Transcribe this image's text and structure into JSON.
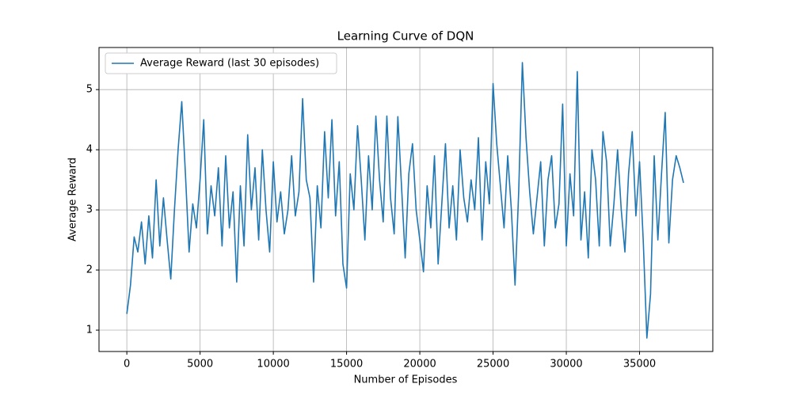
{
  "chart_data": {
    "type": "line",
    "title": "Learning Curve of DQN",
    "xlabel": "Number of Episodes",
    "ylabel": "Average Reward",
    "legend": "upper left",
    "grid": true,
    "xlim": [
      -1900,
      40000
    ],
    "ylim": [
      0.645,
      5.7
    ],
    "xticks": [
      0,
      5000,
      10000,
      15000,
      20000,
      25000,
      30000,
      35000
    ],
    "yticks": [
      1,
      2,
      3,
      4,
      5
    ],
    "x": [
      0,
      250,
      500,
      750,
      1000,
      1250,
      1500,
      1750,
      2000,
      2250,
      2500,
      2750,
      3000,
      3250,
      3500,
      3750,
      4000,
      4250,
      4500,
      4750,
      5000,
      5250,
      5500,
      5750,
      6000,
      6250,
      6500,
      6750,
      7000,
      7250,
      7500,
      7750,
      8000,
      8250,
      8500,
      8750,
      9000,
      9250,
      9500,
      9750,
      10000,
      10250,
      10500,
      10750,
      11000,
      11250,
      11500,
      11750,
      12000,
      12250,
      12500,
      12750,
      13000,
      13250,
      13500,
      13750,
      14000,
      14250,
      14500,
      14750,
      15000,
      15250,
      15500,
      15750,
      16000,
      16250,
      16500,
      16750,
      17000,
      17250,
      17500,
      17750,
      18000,
      18250,
      18500,
      18750,
      19000,
      19250,
      19500,
      19750,
      20000,
      20250,
      20500,
      20750,
      21000,
      21250,
      21500,
      21750,
      22000,
      22250,
      22500,
      22750,
      23000,
      23250,
      23500,
      23750,
      24000,
      24250,
      24500,
      24750,
      25000,
      25250,
      25500,
      25750,
      26000,
      26250,
      26500,
      26750,
      27000,
      27250,
      27500,
      27750,
      28000,
      28250,
      28500,
      28750,
      29000,
      29250,
      29500,
      29750,
      30000,
      30250,
      30500,
      30750,
      31000,
      31250,
      31500,
      31750,
      32000,
      32250,
      32500,
      32750,
      33000,
      33250,
      33500,
      33750,
      34000,
      34250,
      34500,
      34750,
      35000,
      35250,
      35500,
      35750,
      36000,
      36250,
      36500,
      36750,
      37000,
      37250,
      37500,
      37750,
      38000
    ],
    "series": [
      {
        "name": "Average Reward (last 30 episodes)",
        "color": "#1f77b4",
        "values": [
          1.27,
          1.75,
          2.55,
          2.3,
          2.8,
          2.1,
          2.9,
          2.2,
          3.5,
          2.4,
          3.2,
          2.5,
          1.85,
          3.0,
          4.0,
          4.8,
          3.6,
          2.3,
          3.1,
          2.7,
          3.5,
          4.5,
          2.6,
          3.4,
          2.9,
          3.7,
          2.4,
          3.9,
          2.7,
          3.3,
          1.8,
          3.4,
          2.4,
          4.25,
          3.0,
          3.7,
          2.5,
          4.0,
          3.0,
          2.3,
          3.8,
          2.8,
          3.3,
          2.6,
          3.0,
          3.9,
          2.9,
          3.3,
          4.85,
          3.5,
          3.2,
          1.8,
          3.4,
          2.7,
          4.3,
          3.2,
          4.5,
          2.9,
          3.8,
          2.1,
          1.7,
          3.6,
          3.0,
          4.4,
          3.5,
          2.5,
          3.9,
          3.0,
          4.56,
          3.5,
          2.8,
          4.56,
          3.2,
          2.6,
          4.55,
          3.4,
          2.2,
          3.6,
          4.1,
          3.0,
          2.5,
          1.97,
          3.4,
          2.7,
          3.9,
          2.1,
          3.1,
          4.1,
          2.7,
          3.4,
          2.5,
          4.0,
          3.2,
          2.8,
          3.5,
          3.0,
          4.2,
          2.5,
          3.8,
          3.1,
          5.1,
          4.1,
          3.4,
          2.7,
          3.9,
          3.0,
          1.75,
          3.3,
          5.45,
          4.2,
          3.3,
          2.6,
          3.2,
          3.8,
          2.4,
          3.5,
          3.9,
          2.7,
          3.1,
          4.76,
          2.4,
          3.6,
          2.9,
          5.3,
          2.5,
          3.3,
          2.2,
          4.0,
          3.5,
          2.4,
          4.3,
          3.8,
          2.4,
          3.1,
          4.0,
          3.0,
          2.3,
          3.6,
          4.3,
          2.9,
          3.8,
          2.5,
          0.87,
          1.6,
          3.9,
          2.5,
          3.6,
          4.62,
          2.45,
          3.5,
          3.9,
          3.7,
          3.45
        ]
      }
    ]
  }
}
